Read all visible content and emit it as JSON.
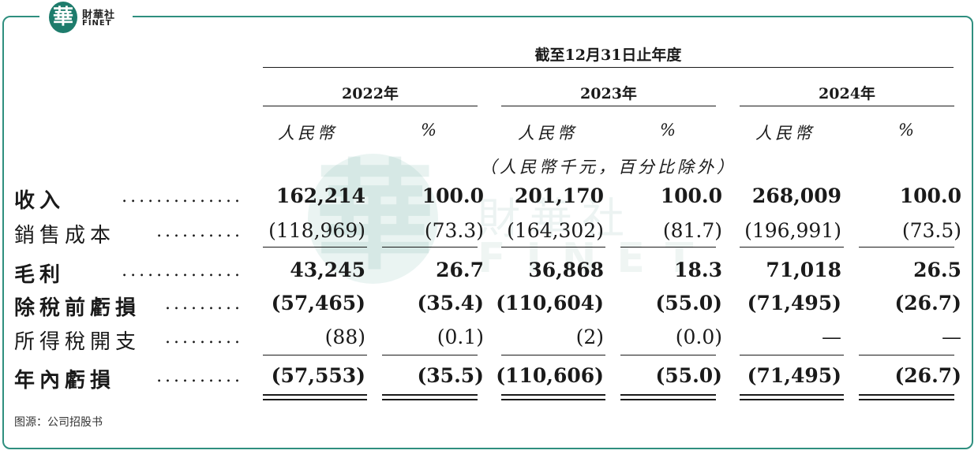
{
  "brand": {
    "cn": "財華社",
    "en": "FINET",
    "mark": "華"
  },
  "table": {
    "period_header": "截至12月31日止年度",
    "years": [
      "2022年",
      "2023年",
      "2024年"
    ],
    "col_currency": "人民幣",
    "col_percent": "%",
    "unit_note": "（人民幣千元，百分比除外）",
    "rows": [
      {
        "label": "收入",
        "dots": "..............",
        "values": [
          "162,214",
          "100.0",
          "201,170",
          "100.0",
          "268,009",
          "100.0"
        ]
      },
      {
        "label": "銷售成本",
        "dots": "..........",
        "values": [
          "(118,969)",
          "(73.3)",
          "(164,302)",
          "(81.7)",
          "(196,991)",
          "(73.5)"
        ]
      },
      {
        "label": "毛利",
        "dots": "..............",
        "values": [
          "43,245",
          "26.7",
          "36,868",
          "18.3",
          "71,018",
          "26.5"
        ]
      },
      {
        "label": "除稅前虧損",
        "dots": ".........",
        "values": [
          "(57,465)",
          "(35.4)",
          "(110,604)",
          "(55.0)",
          "(71,495)",
          "(26.7)"
        ]
      },
      {
        "label": "所得稅開支",
        "dots": ".........",
        "values": [
          "(88)",
          "(0.1)",
          "(2)",
          "(0.0)",
          "—",
          "—"
        ]
      },
      {
        "label": "年內虧損",
        "dots": "..........",
        "values": [
          "(57,553)",
          "(35.5)",
          "(110,606)",
          "(55.0)",
          "(71,495)",
          "(26.7)"
        ]
      }
    ]
  },
  "source": "图源：公司招股书"
}
